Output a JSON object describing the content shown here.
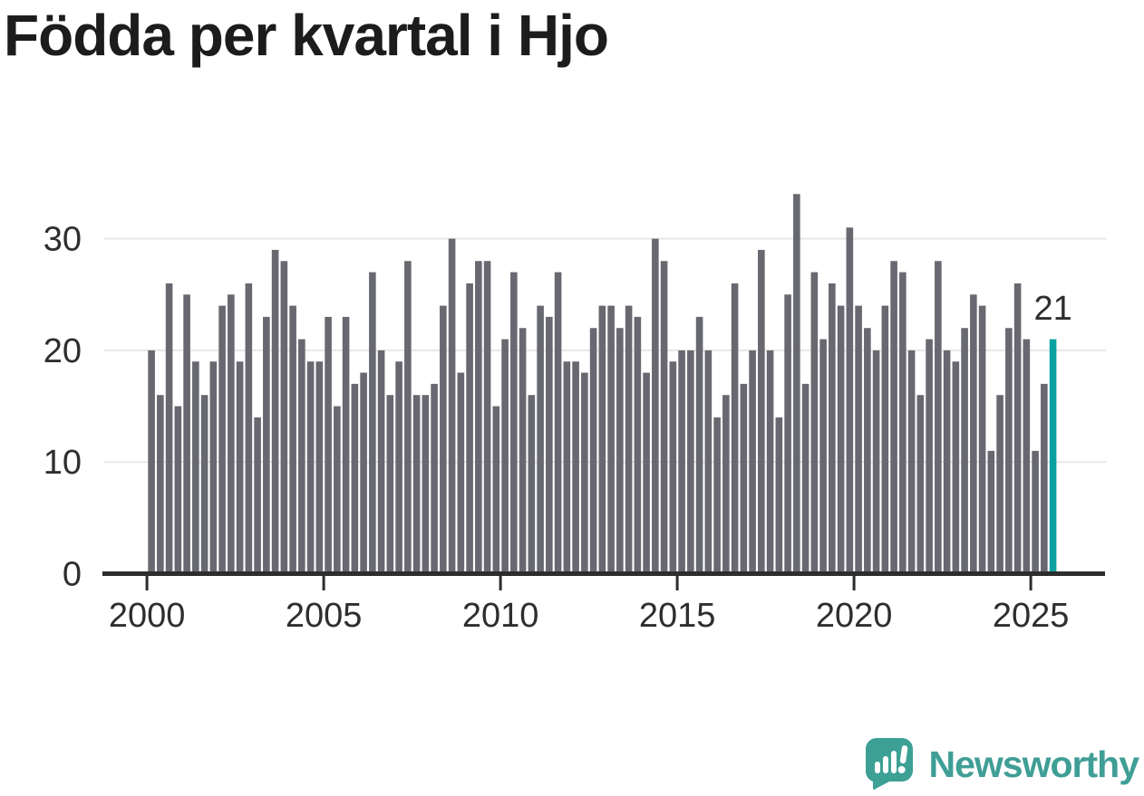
{
  "header": {
    "title": "Födda per kvartal i Hjo"
  },
  "chart_data": {
    "type": "bar",
    "title": "Födda per kvartal i Hjo",
    "x_start": "2000-Q1",
    "x_end": "2025-Q3",
    "frequency": "quarterly",
    "values": [
      20,
      16,
      26,
      15,
      25,
      19,
      16,
      19,
      24,
      25,
      19,
      26,
      14,
      23,
      29,
      28,
      24,
      21,
      19,
      19,
      23,
      15,
      23,
      17,
      18,
      27,
      20,
      16,
      19,
      28,
      16,
      16,
      17,
      24,
      30,
      18,
      26,
      28,
      28,
      15,
      21,
      27,
      22,
      16,
      24,
      23,
      27,
      19,
      19,
      18,
      22,
      24,
      24,
      22,
      24,
      23,
      18,
      30,
      28,
      19,
      20,
      20,
      23,
      20,
      14,
      16,
      26,
      17,
      20,
      29,
      20,
      14,
      25,
      34,
      17,
      27,
      21,
      26,
      24,
      31,
      24,
      22,
      20,
      24,
      28,
      27,
      20,
      16,
      21,
      28,
      20,
      19,
      22,
      25,
      24,
      11,
      16,
      22,
      26,
      21,
      11,
      17,
      21
    ],
    "x_ticks": [
      {
        "label": "2000",
        "quarter_index": 0
      },
      {
        "label": "2005",
        "quarter_index": 20
      },
      {
        "label": "2010",
        "quarter_index": 40
      },
      {
        "label": "2015",
        "quarter_index": 60
      },
      {
        "label": "2020",
        "quarter_index": 80
      },
      {
        "label": "2025",
        "quarter_index": 100
      }
    ],
    "y_ticks": [
      0,
      10,
      20,
      30
    ],
    "ylim": [
      0,
      35
    ],
    "grid": true,
    "legend": "none",
    "bar_color": "#686870",
    "grid_color": "#e7e7e7",
    "axis_color": "#2d2d2d",
    "highlight": {
      "index": 102,
      "value": 21,
      "label": "21",
      "color": "#0ba1a1"
    }
  },
  "branding": {
    "name": "Newsworthy",
    "color": "#3f9e96",
    "icon_color": "#3ca095",
    "icon": "bar-chart-speech-bubble"
  }
}
